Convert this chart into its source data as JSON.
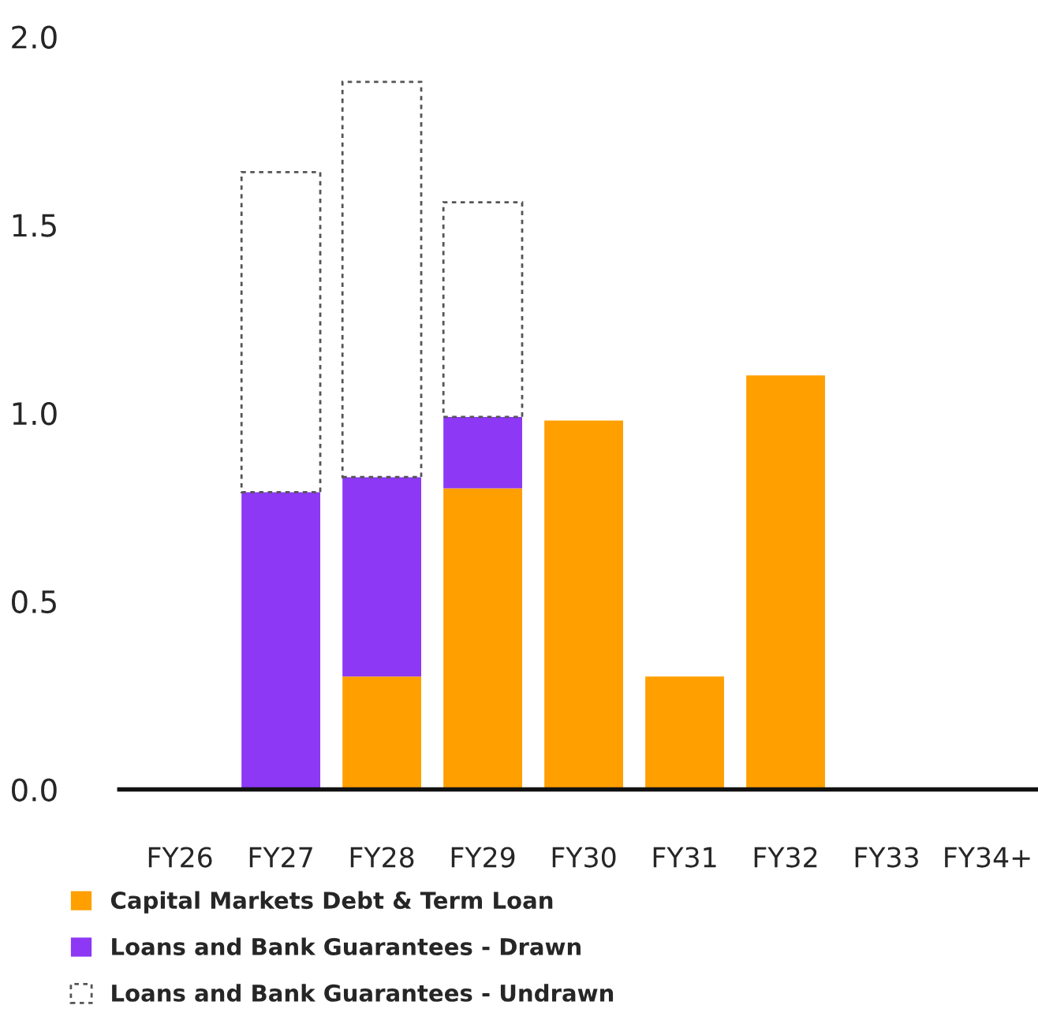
{
  "chart_data": {
    "type": "bar",
    "stacked": true,
    "categories": [
      "FY26",
      "FY27",
      "FY28",
      "FY29",
      "FY30",
      "FY31",
      "FY32",
      "FY33",
      "FY34+"
    ],
    "series": [
      {
        "name": "Capital Markets Debt & Term Loan",
        "color": "#ff9f00",
        "values": [
          null,
          null,
          0.3,
          0.8,
          0.98,
          0.3,
          1.1,
          null,
          null
        ]
      },
      {
        "name": "Loans and Bank Guarantees - Drawn",
        "color": "#8c38f5",
        "values": [
          null,
          0.79,
          0.53,
          0.19,
          null,
          null,
          null,
          null,
          null
        ]
      },
      {
        "name": "Loans and Bank Guarantees - Undrawn",
        "color": "#ffffff",
        "line_style": "dashed",
        "values": [
          null,
          0.85,
          1.05,
          0.57,
          null,
          null,
          null,
          null,
          null
        ]
      }
    ],
    "ylim": [
      0,
      2.0
    ],
    "yticks": [
      {
        "value": 0,
        "label": "0.0"
      },
      {
        "value": 0.5,
        "label": "0.5"
      },
      {
        "value": 1.0,
        "label": "1.0"
      },
      {
        "value": 1.5,
        "label": "1.5"
      },
      {
        "value": 2.0,
        "label": "2.0"
      }
    ],
    "grid": false,
    "legend": "bottom left"
  }
}
